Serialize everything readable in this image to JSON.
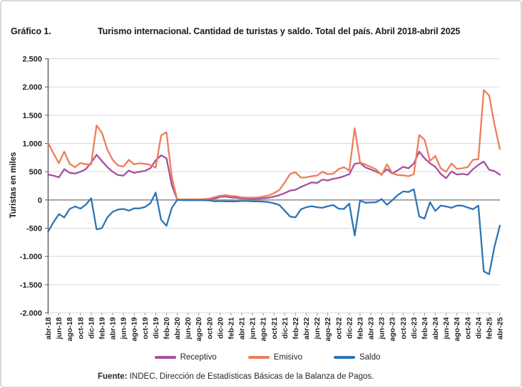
{
  "header": {
    "label": "Gráfico 1.",
    "title": "Turismo internacional. Cantidad de turistas y saldo. Total del país. Abril 2018-abril 2025"
  },
  "footer": {
    "source_label": "Fuente:",
    "source_text": " INDEC, Dirección de Estadísticas Básicas de la Balanza de Pagos."
  },
  "chart_data": {
    "type": "line",
    "title": "Turismo internacional. Cantidad de turistas y saldo. Total del país. Abril 2018-abril 2025",
    "xlabel": "",
    "ylabel": "Turistas en miles",
    "ylim": [
      -2000,
      2500
    ],
    "ytick_step": 500,
    "ytick_labels": [
      "2.500",
      "2.000",
      "1.500",
      "1.000",
      "500",
      "0",
      "-500",
      "-1.000",
      "-1.500",
      "-2.000"
    ],
    "grid": "horizontal",
    "legend_position": "bottom",
    "x_unit": "month",
    "x_label_every": 2,
    "x_labels": [
      "abr-18",
      "jun-18",
      "ago-18",
      "oct-18",
      "dic-18",
      "feb-19",
      "abr-19",
      "jun-19",
      "ago-19",
      "oct-19",
      "dic-19",
      "feb-20",
      "abr-20",
      "jun-20",
      "ago-20",
      "oct-20",
      "dic-20",
      "feb-21",
      "abr-21",
      "jun-21",
      "ago-21",
      "oct-21",
      "dic-21",
      "feb-22",
      "abr-22",
      "jun-22",
      "ago-22",
      "oct-22",
      "dic-22",
      "feb-23",
      "abr-23",
      "jun-23",
      "ago-23",
      "oct-23",
      "dic-23",
      "feb-24",
      "abr-24",
      "jun-24",
      "ago-24",
      "oct-24",
      "dic-24",
      "feb-25",
      "abr-25"
    ],
    "series": [
      {
        "name": "Receptivo",
        "color": "#A6509E",
        "values": [
          450,
          430,
          400,
          545,
          480,
          465,
          500,
          545,
          660,
          800,
          690,
          580,
          500,
          440,
          430,
          520,
          480,
          500,
          515,
          560,
          700,
          790,
          740,
          260,
          5,
          5,
          5,
          5,
          5,
          10,
          15,
          25,
          55,
          60,
          45,
          40,
          25,
          20,
          15,
          20,
          30,
          40,
          60,
          85,
          120,
          165,
          180,
          230,
          270,
          310,
          300,
          360,
          345,
          375,
          390,
          420,
          455,
          640,
          655,
          575,
          540,
          500,
          455,
          545,
          465,
          525,
          585,
          560,
          645,
          855,
          735,
          650,
          585,
          460,
          385,
          505,
          450,
          460,
          445,
          545,
          620,
          680,
          535,
          510,
          445
        ]
      },
      {
        "name": "Emisivo",
        "color": "#EE7D5B",
        "values": [
          1010,
          825,
          650,
          855,
          640,
          580,
          655,
          630,
          630,
          1320,
          1190,
          890,
          710,
          610,
          590,
          710,
          630,
          650,
          640,
          620,
          570,
          1140,
          1200,
          400,
          5,
          10,
          10,
          10,
          10,
          15,
          25,
          50,
          75,
          85,
          70,
          65,
          45,
          40,
          40,
          45,
          60,
          80,
          120,
          175,
          310,
          460,
          490,
          395,
          400,
          420,
          430,
          500,
          455,
          465,
          545,
          580,
          520,
          1270,
          665,
          625,
          585,
          540,
          440,
          630,
          470,
          440,
          435,
          420,
          455,
          1150,
          1065,
          690,
          780,
          560,
          500,
          645,
          550,
          560,
          580,
          710,
          720,
          1945,
          1850,
          1330,
          900
        ]
      },
      {
        "name": "Saldo",
        "color": "#2E75B6",
        "values": [
          -560,
          -395,
          -250,
          -310,
          -160,
          -115,
          -155,
          -85,
          30,
          -520,
          -500,
          -310,
          -210,
          -170,
          -160,
          -190,
          -150,
          -150,
          -125,
          -60,
          130,
          -350,
          -460,
          -140,
          0,
          -5,
          -5,
          -5,
          -5,
          -5,
          -10,
          -25,
          -20,
          -25,
          -25,
          -25,
          -20,
          -20,
          -25,
          -25,
          -30,
          -40,
          -60,
          -90,
          -190,
          -295,
          -310,
          -165,
          -130,
          -110,
          -130,
          -140,
          -110,
          -90,
          -155,
          -160,
          -65,
          -630,
          -10,
          -50,
          -45,
          -40,
          15,
          -85,
          -5,
          85,
          150,
          140,
          190,
          -295,
          -330,
          -40,
          -195,
          -100,
          -115,
          -140,
          -100,
          -100,
          -135,
          -165,
          -100,
          -1265,
          -1315,
          -820,
          -455
        ]
      }
    ],
    "style": {
      "gridline_color": "#d9d9d9",
      "zeroline_color": "#9e9e9e",
      "axis_color": "#5a5a5a",
      "tick_label_color": "#1f1f1f",
      "line_width": 2.3
    }
  }
}
